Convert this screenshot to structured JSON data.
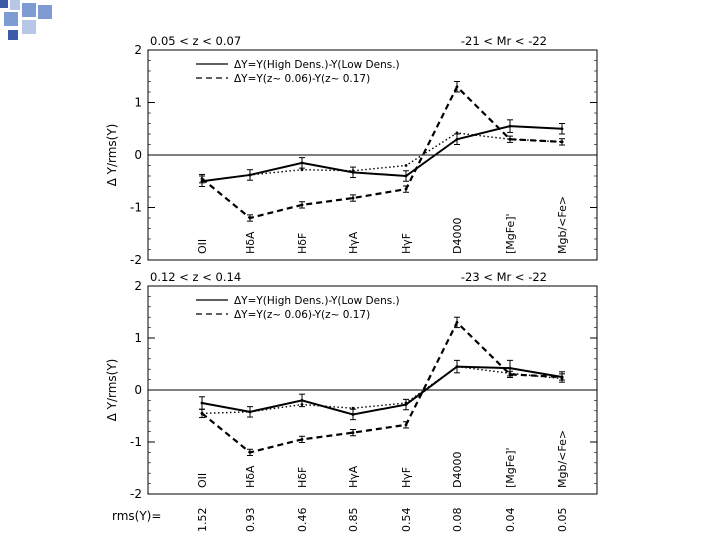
{
  "decoration": {
    "accent_colors": [
      "#7f9bd3",
      "#3d5aa8",
      "#b8c7e6"
    ]
  },
  "rms_row_label": "rms(Y)=",
  "rms_values": [
    "1.52",
    "0.93",
    "0.46",
    "0.85",
    "0.54",
    "0.08",
    "0.04",
    "0.05"
  ],
  "chart_data": [
    {
      "type": "line",
      "title_left": "0.05 < z < 0.07",
      "title_right": "-21 < Mr < -22",
      "ylabel": "Δ Y/rms(Y)",
      "ylim": [
        -2,
        2
      ],
      "yticks": [
        "2",
        "1",
        "0",
        "-1",
        "-2"
      ],
      "categories": [
        "OII",
        "HδA",
        "HδF",
        "HγA",
        "HγF",
        "D4000",
        "[MgFe]'",
        "Mgb/<Fe>"
      ],
      "legend": [
        "ΔY=Y(High Dens.)-Y(Low Dens.)",
        "ΔY=Y(z~ 0.06)-Y(z~ 0.17)"
      ],
      "series": [
        {
          "name": "ΔY=Y(High Dens.)-Y(Low Dens.)",
          "style": "solid",
          "values": [
            -0.5,
            -0.38,
            -0.15,
            -0.33,
            -0.4,
            0.3,
            0.55,
            0.5
          ],
          "errors": [
            0.1,
            0.1,
            0.1,
            0.1,
            0.1,
            0.1,
            0.12,
            0.1
          ]
        },
        {
          "name": "ΔY=Y(z~ 0.06)-Y(z~ 0.17)",
          "style": "dashed",
          "values": [
            -0.45,
            -1.2,
            -0.95,
            -0.82,
            -0.65,
            1.3,
            0.3,
            0.25
          ],
          "errors": [
            0.08,
            0.06,
            0.06,
            0.06,
            0.06,
            0.1,
            0.06,
            0.06
          ]
        },
        {
          "name": "",
          "style": "dotted",
          "values": [
            -0.5,
            -0.38,
            -0.28,
            -0.3,
            -0.2,
            0.42,
            0.3,
            0.25
          ],
          "errors": []
        }
      ]
    },
    {
      "type": "line",
      "title_left": "0.12 < z < 0.14",
      "title_right": "-23 < Mr < -22",
      "ylabel": "Δ Y/rms(Y)",
      "ylim": [
        -2,
        2
      ],
      "yticks": [
        "2",
        "1",
        "0",
        "-1",
        "-2"
      ],
      "categories": [
        "OII",
        "HδA",
        "HδF",
        "HγA",
        "HγF",
        "D4000",
        "[MgFe]'",
        "Mgb/<Fe>"
      ],
      "legend": [
        "ΔY=Y(High Dens.)-Y(Low Dens.)",
        "ΔY=Y(z~ 0.06)-Y(z~ 0.17)"
      ],
      "series": [
        {
          "name": "ΔY=Y(High Dens.)-Y(Low Dens.)",
          "style": "solid",
          "values": [
            -0.25,
            -0.42,
            -0.2,
            -0.47,
            -0.28,
            0.45,
            0.42,
            0.25
          ],
          "errors": [
            0.12,
            0.1,
            0.12,
            0.1,
            0.1,
            0.12,
            0.15,
            0.1
          ]
        },
        {
          "name": "ΔY=Y(z~ 0.06)-Y(z~ 0.17)",
          "style": "dashed",
          "values": [
            -0.45,
            -1.2,
            -0.95,
            -0.82,
            -0.67,
            1.3,
            0.3,
            0.25
          ],
          "errors": [
            0.08,
            0.06,
            0.06,
            0.06,
            0.06,
            0.1,
            0.06,
            0.06
          ]
        },
        {
          "name": "",
          "style": "dotted",
          "values": [
            -0.45,
            -0.42,
            -0.28,
            -0.35,
            -0.25,
            0.45,
            0.32,
            0.22
          ],
          "errors": []
        }
      ]
    }
  ]
}
